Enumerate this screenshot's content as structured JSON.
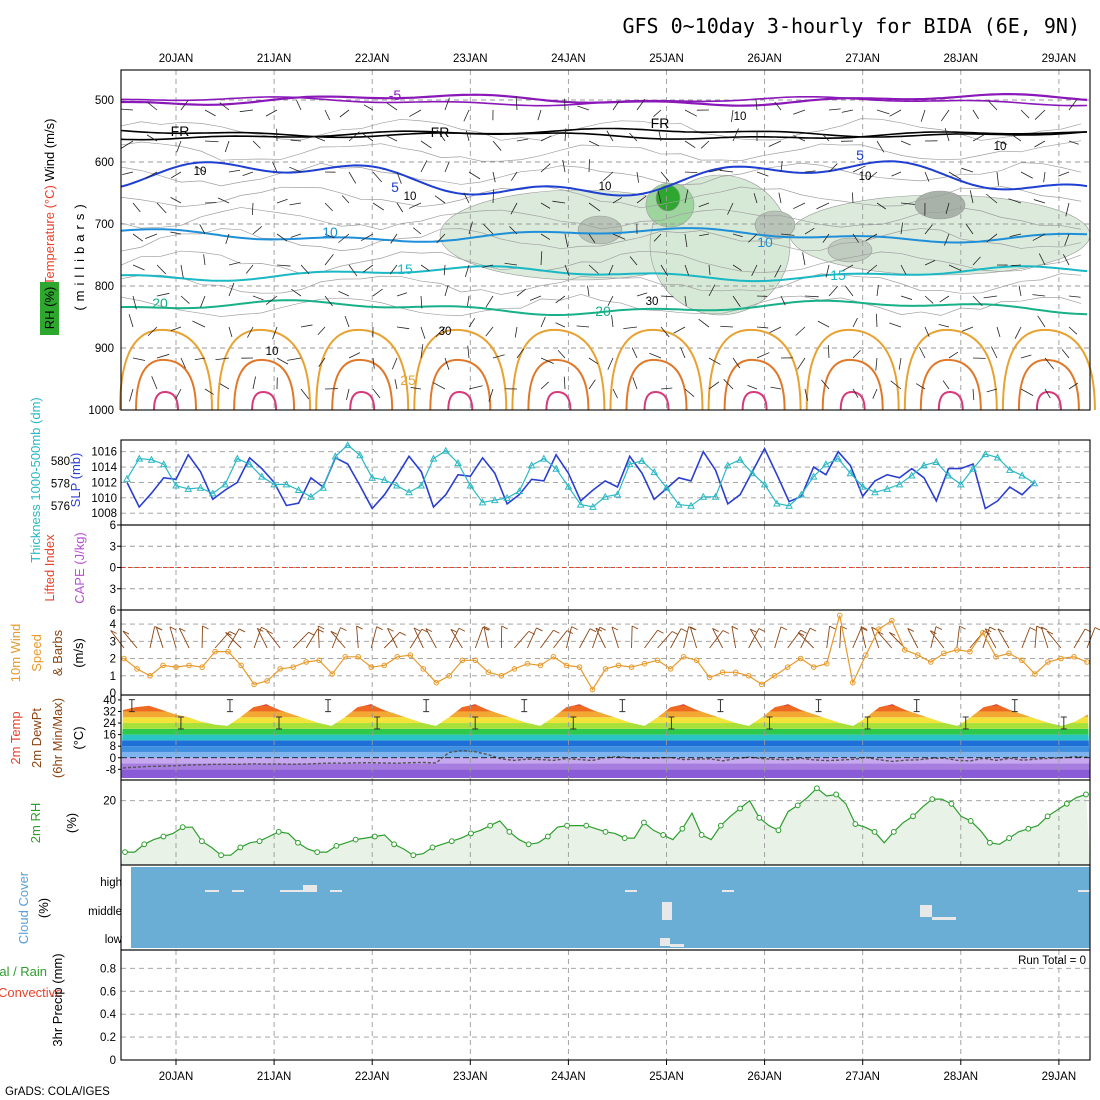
{
  "title": "GFS 0~10day 3-hourly for BIDA (6E, 9N)",
  "credit": "GrADS: COLA/IGES",
  "x_ticks": [
    "20JAN",
    "21JAN",
    "22JAN",
    "23JAN",
    "24JAN",
    "25JAN",
    "26JAN",
    "27JAN",
    "28JAN",
    "29JAN"
  ],
  "colors": {
    "rh": "#2e9e2e",
    "temp": "#e8412a",
    "wind": "#8b4513",
    "slp": "#2a3fd1",
    "thick": "#2bb8c4",
    "cape": "#b84fd6",
    "lifted": "#e8412a",
    "wind10": "#e89a2a",
    "rh2m": "#2e9e2e",
    "cloud": "#5b9fd6",
    "cloud_bg": "#6aaed6",
    "precip_total": "#2e9e2e",
    "precip_conv": "#e8412a"
  },
  "panels": {
    "upper": {
      "ylabel_wind": "Wind (m/s)",
      "ylabel_temp": "Temperature (°C)",
      "ylabel_rh": "RH (%)",
      "ylabel_units": "(millibars)"
    },
    "slp": {
      "ylabel_thick": "Thickness 1000-500mb (dm)",
      "ylabel_slp": "SLP (mb)"
    },
    "li": {
      "ylabel_li": "Lifted Index",
      "ylabel_cape": "CAPE (J/kg)"
    },
    "wind10": {
      "ylabel1": "10m Wind",
      "ylabel2": "Speed",
      "ylabel3": "& Barbs",
      "ylabel4": "(m/s)"
    },
    "t2m": {
      "ylabel1": "2m Temp",
      "ylabel2": "2m DewPt",
      "ylabel3": "(6hr Min/Max)",
      "ylabel4": "(°C)"
    },
    "rh2m": {
      "ylabel1": "2m RH",
      "ylabel2": "(%)"
    },
    "cloud": {
      "ylabel1": "Cloud Cover",
      "ylabel2": "(%)",
      "levels": [
        "high",
        "middle",
        "low"
      ]
    },
    "precip": {
      "ylabel1": "Total / Rain",
      "ylabel2": "Convective",
      "ylabel3": "3hr Precip (mm)",
      "run_total": "Run Total = 0"
    }
  },
  "chart_data": [
    {
      "type": "heatmap",
      "name": "upper-air cross section",
      "y_ticks": [
        500,
        600,
        700,
        800,
        900,
        1000
      ],
      "ylim": [
        450,
        1050
      ],
      "temperature_contours": [
        -5,
        "FR",
        5,
        10,
        15,
        20,
        25
      ],
      "temperature_contour_labels": [
        "-5",
        "FR",
        "FR",
        "FR",
        "5",
        "5",
        "10",
        "10",
        "15",
        "15",
        "20",
        "20",
        "25"
      ],
      "rh_contour_labels": [
        "10",
        "10",
        "10",
        "10",
        "10",
        "30",
        "30",
        "10",
        "10"
      ],
      "rh_max_location_day": 5.0,
      "rh_max_level_mb": 665
    },
    {
      "type": "line",
      "name": "SLP and thickness",
      "days": [
        0,
        0.125,
        0.25,
        0.375,
        0.5,
        0.625,
        0.75,
        0.875,
        1,
        1.125,
        1.25,
        1.375,
        1.5,
        1.625,
        1.75,
        1.875,
        2,
        2.125,
        2.25,
        2.375,
        2.5,
        2.625,
        2.75,
        2.875,
        3,
        3.125,
        3.25,
        3.375,
        3.5,
        3.625,
        3.75,
        3.875,
        4,
        4.125,
        4.25,
        4.375,
        4.5,
        4.625,
        4.75,
        4.875,
        5,
        5.125,
        5.25,
        5.375,
        5.5,
        5.625,
        5.75,
        5.875,
        6,
        6.125,
        6.25,
        6.375,
        6.5,
        6.625,
        6.75,
        6.875,
        7,
        7.125,
        7.25,
        7.375,
        7.5,
        7.625,
        7.75,
        7.875,
        8,
        8.125,
        8.25,
        8.375,
        8.5,
        8.625,
        8.75,
        8.875,
        9,
        9.125,
        9.25
      ],
      "slp_ylim": [
        1007.5,
        1017
      ],
      "slp_ticks": [
        1008,
        1010,
        1012,
        1014,
        1016
      ],
      "thick_ylim": [
        575,
        581.5
      ],
      "thick_ticks": [
        576,
        578,
        580
      ],
      "series": [
        {
          "name": "SLP (mb)",
          "values": [
            1012,
            1008.8,
            1010.6,
            1012.6,
            1012.4,
            1015.6,
            1013.4,
            1009.8,
            1011,
            1012,
            1015.2,
            1013.8,
            1012,
            1009,
            1009.3,
            1012.6,
            1011.4,
            1015.2,
            1014.4,
            1011.6,
            1008.6,
            1010.4,
            1012.8,
            1015.4,
            1013.4,
            1008.8,
            1010.4,
            1013,
            1012.8,
            1015.2,
            1013.2,
            1009.2,
            1010.4,
            1012.4,
            1012.2,
            1015.6,
            1013.2,
            1009.6,
            1011,
            1012.2,
            1011.4,
            1015.4,
            1013.2,
            1009.8,
            1011.2,
            1012.6,
            1012.2,
            1016,
            1013.6,
            1009.2,
            1010.4,
            1013.4,
            1016.4,
            1013,
            1009.5,
            1010.2,
            1014,
            1013,
            1016,
            1014.2,
            1010.2,
            1012.2,
            1013,
            1012.6,
            1013.8,
            1012.6,
            1009.6,
            1013.8,
            1013.8,
            1014.4,
            1008.6,
            1009.6,
            1011.4,
            1010.4,
            1012
          ]
        },
        {
          "name": "Thickness (dm)",
          "values": [
            578.4,
            580.2,
            580.1,
            579.7,
            577.8,
            577.5,
            577.6,
            577.1,
            577.9,
            580.2,
            579.7,
            578.6,
            577.9,
            577.9,
            577.4,
            576.8,
            577.6,
            580.4,
            581.4,
            580.5,
            578.5,
            578.3,
            577.8,
            577.2,
            577.8,
            580.2,
            580.9,
            579.8,
            577.8,
            576.3,
            576.5,
            576.7,
            577.3,
            579.6,
            580.2,
            579.3,
            577.7,
            576.1,
            575.9,
            576.8,
            577,
            579.7,
            580,
            579,
            577.6,
            576.1,
            576,
            576.8,
            576.8,
            579.6,
            580.1,
            578.9,
            577.9,
            576.2,
            576,
            577,
            578.6,
            579.7,
            580.2,
            578.9,
            577.7,
            577.2,
            577.5,
            577.9,
            578.7,
            579.6,
            579.9,
            578.7,
            577.9,
            579.3,
            580.6,
            580.3,
            579.2,
            578.7,
            578
          ]
        }
      ]
    },
    {
      "type": "line",
      "name": "Lifted index and CAPE",
      "y_ticks": [
        6,
        3,
        0,
        -3,
        -6
      ],
      "ylim": [
        -6,
        6
      ],
      "series": [
        {
          "name": "CAPE (J/kg)",
          "values": [
            0,
            0,
            0,
            0,
            0,
            0,
            0,
            0,
            0,
            0
          ]
        }
      ]
    },
    {
      "type": "line",
      "name": "10m wind speed",
      "y_ticks": [
        0,
        1,
        2,
        3,
        4
      ],
      "ylim": [
        0,
        4.7
      ],
      "series": [
        {
          "name": "10m Wind Speed (m/s)",
          "values": [
            2,
            1.4,
            1,
            1.6,
            1.5,
            1.6,
            1.5,
            2.4,
            2.4,
            1.6,
            0.5,
            0.7,
            1.4,
            1.5,
            1.8,
            1.9,
            1.1,
            2.1,
            2.1,
            1.5,
            1.6,
            2.1,
            2.2,
            1.4,
            0.6,
            1,
            1.9,
            1.9,
            1.2,
            1,
            1.4,
            1.7,
            1.6,
            2.1,
            1.6,
            1.5,
            0.2,
            1.4,
            1.6,
            1.5,
            1.7,
            1.9,
            1.4,
            2.1,
            1.9,
            0.9,
            1.2,
            1.2,
            1,
            0.5,
            1,
            1.5,
            2,
            1.5,
            1.7,
            4.5,
            0.6,
            2.2,
            3.7,
            4.2,
            2.5,
            2.2,
            1.8,
            2.3,
            2.5,
            2.4,
            3.5,
            2.1,
            2.3,
            1.9,
            1.1,
            1.8,
            2,
            2.1,
            1.8
          ]
        }
      ]
    },
    {
      "type": "area",
      "name": "2m temperature and dewpoint",
      "y_ticks": [
        40,
        32,
        24,
        16,
        8,
        0,
        -8
      ],
      "ylim": [
        -14,
        42
      ],
      "series": [
        {
          "name": "2m Temp (°C)",
          "values": [
            33,
            35,
            36,
            33,
            30,
            28,
            25,
            23,
            22,
            28,
            35,
            37,
            33,
            30,
            27,
            24,
            22,
            28,
            35,
            37,
            33,
            30,
            27,
            24,
            22,
            28,
            35,
            37,
            33,
            30,
            27,
            24,
            22,
            28,
            35,
            37,
            33,
            30,
            27,
            24,
            22,
            28,
            35,
            37,
            33,
            30,
            27,
            24,
            22,
            28,
            35,
            37,
            33,
            30,
            27,
            24,
            22,
            28,
            35,
            37,
            33,
            30,
            27,
            24,
            22,
            28,
            35,
            37,
            33,
            30,
            27,
            24,
            22,
            25,
            30
          ]
        },
        {
          "name": "2m DewPt (°C)",
          "values": [
            -7,
            -6.5,
            -6,
            -5.8,
            -5.5,
            -5,
            -4.8,
            -4.5,
            -4.5,
            -4.5,
            -4.2,
            -4.4,
            -4.3,
            -4.5,
            -4.3,
            -4,
            -3.6,
            -3.8,
            -3.5,
            -3.4,
            -3.6,
            -3.8,
            -3.4,
            -3.2,
            -3.6,
            3.6,
            5,
            4.2,
            2.2,
            -0.8,
            -1.8,
            -0.9,
            -1.2,
            -1.8,
            -0.6,
            -1.3,
            -1.9,
            0.2,
            0.8,
            -0.2,
            -0.4,
            -0.2,
            0.2,
            -1.3,
            -0.9,
            -0.7,
            -2.2,
            -0.6,
            0.4,
            -0.6,
            -1.1,
            -1.4,
            -0.4,
            -1.5,
            -2,
            -1.6,
            -1.1,
            0.2,
            -1.4,
            -2.5,
            -1.7,
            -1.4,
            -0.4,
            -0.3,
            -1.8,
            -2.2,
            -0.3,
            -1.8,
            -0.3,
            -1.7,
            -0.9,
            -0.4,
            -0.1,
            0.8,
            0.4
          ]
        }
      ]
    },
    {
      "type": "area",
      "name": "2m relative humidity",
      "y_ticks": [
        20
      ],
      "ylim": [
        0,
        26
      ],
      "series": [
        {
          "name": "2m RH (%)",
          "values": [
            3.5,
            3.5,
            6,
            7.5,
            8.5,
            9.5,
            11.5,
            11.5,
            7,
            5,
            2.5,
            2.5,
            5,
            6.5,
            7,
            8.5,
            10,
            9.5,
            6.5,
            4.5,
            3.5,
            3.5,
            5.5,
            6.5,
            7.5,
            8,
            8.5,
            9,
            6,
            4.5,
            2.5,
            3,
            5,
            6,
            7,
            8,
            9.5,
            10.5,
            12,
            13.5,
            10,
            7.5,
            6,
            6.5,
            8.5,
            11.5,
            12,
            12,
            12,
            11,
            10,
            9.5,
            8,
            8,
            13,
            10.5,
            9,
            7.5,
            11,
            16,
            9,
            7.5,
            12,
            15,
            17.5,
            20,
            14.5,
            12,
            10.5,
            16.5,
            18.5,
            21,
            24,
            21.5,
            22,
            19,
            12.5,
            11.5,
            10,
            6.5,
            10,
            13,
            15,
            18,
            20.5,
            20.5,
            19,
            15,
            13.5,
            10.5,
            6.5,
            6,
            8,
            10,
            11,
            12,
            15,
            17,
            19,
            21,
            22
          ]
        }
      ]
    },
    {
      "type": "bar",
      "name": "cloud cover",
      "categories": [
        "high",
        "middle",
        "low"
      ],
      "series": [
        {
          "name": "Cloud Cover (%)",
          "values": [
            0,
            0,
            0
          ]
        }
      ]
    },
    {
      "type": "line",
      "name": "3hr precipitation",
      "y_ticks": [
        0,
        0.2,
        0.4,
        0.6,
        0.8
      ],
      "ylim": [
        0,
        0.96
      ],
      "series": [
        {
          "name": "3hr Precip (mm)",
          "values": [
            0,
            0,
            0,
            0,
            0,
            0,
            0,
            0,
            0,
            0
          ]
        }
      ]
    }
  ]
}
